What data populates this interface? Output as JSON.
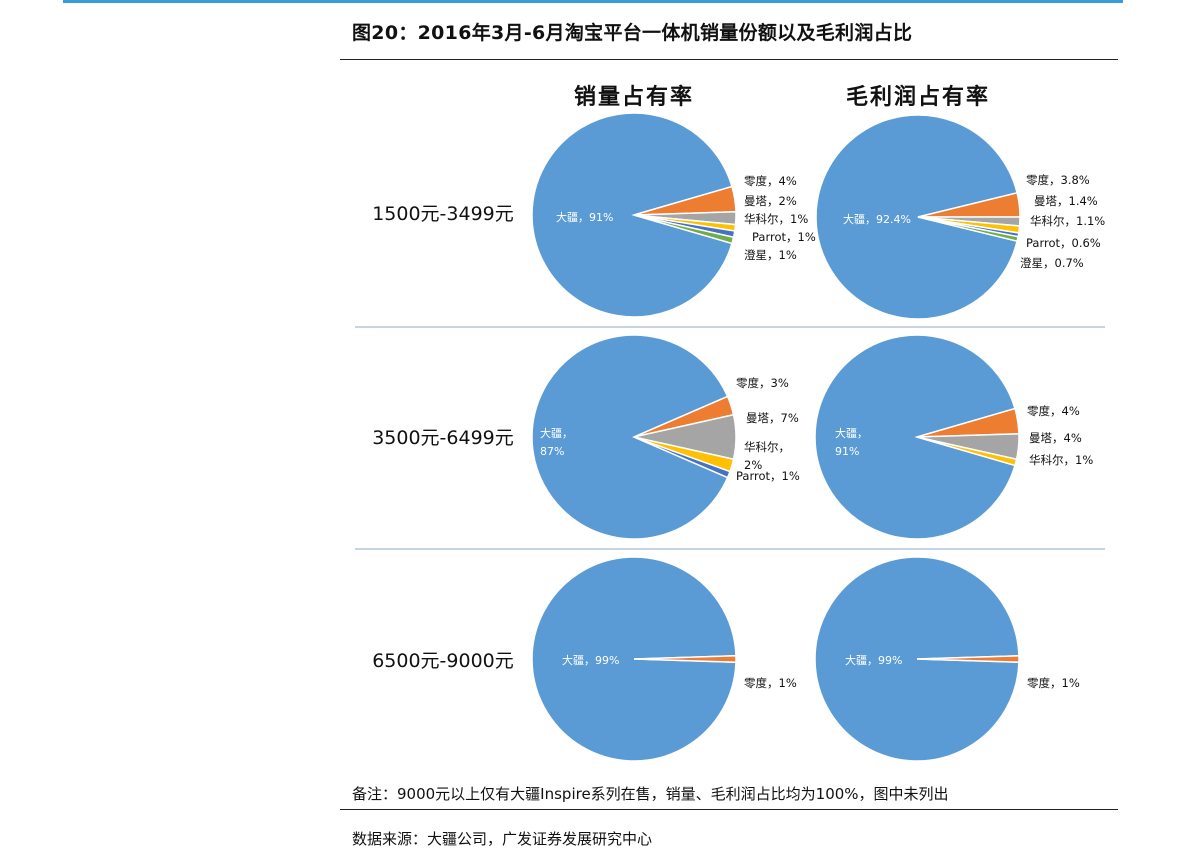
{
  "figure": {
    "title": "图20：2016年3月-6月淘宝平台一体机销量份额以及毛利润占比",
    "note": "备注：9000元以上仅有大疆Inspire系列在售，销量、毛利润占比均为100%，图中未列出",
    "source": "数据来源：大疆公司，广发证券发展研究中心"
  },
  "colors": {
    "大疆": "#5b9bd5",
    "零度": "#ed7d31",
    "曼塔": "#a5a5a5",
    "华科尔": "#ffc000",
    "Parrot": "#4472c4",
    "澄星": "#70ad47"
  },
  "chart_data": [
    {
      "type": "pie",
      "title": "销量占有率",
      "row_label": "1500元-3499元",
      "slices": [
        {
          "name": "大疆",
          "value": 91,
          "label": "大疆，91%"
        },
        {
          "name": "零度",
          "value": 4,
          "label": "零度，4%"
        },
        {
          "name": "曼塔",
          "value": 2,
          "label": "曼塔，2%"
        },
        {
          "name": "华科尔",
          "value": 1,
          "label": "华科尔，1%"
        },
        {
          "name": "Parrot",
          "value": 1,
          "label": "Parrot，1%"
        },
        {
          "name": "澄星",
          "value": 1,
          "label": "澄星，1%"
        }
      ]
    },
    {
      "type": "pie",
      "title": "毛利润占有率",
      "row_label": "1500元-3499元",
      "slices": [
        {
          "name": "大疆",
          "value": 92.4,
          "label": "大疆，92.4%"
        },
        {
          "name": "零度",
          "value": 3.8,
          "label": "零度，3.8%"
        },
        {
          "name": "曼塔",
          "value": 1.4,
          "label": "曼塔，1.4%"
        },
        {
          "name": "华科尔",
          "value": 1.1,
          "label": "华科尔，1.1%"
        },
        {
          "name": "Parrot",
          "value": 0.6,
          "label": "Parrot，0.6%"
        },
        {
          "name": "澄星",
          "value": 0.7,
          "label": "澄星，0.7%"
        }
      ]
    },
    {
      "type": "pie",
      "title": "",
      "row_label": "3500元-6499元",
      "slices": [
        {
          "name": "大疆",
          "value": 87,
          "label": "大疆，87%"
        },
        {
          "name": "零度",
          "value": 3,
          "label": "零度，3%"
        },
        {
          "name": "曼塔",
          "value": 7,
          "label": "曼塔，7%"
        },
        {
          "name": "华科尔",
          "value": 2,
          "label": "华科尔，2%"
        },
        {
          "name": "Parrot",
          "value": 1,
          "label": "Parrot，1%"
        }
      ]
    },
    {
      "type": "pie",
      "title": "",
      "row_label": "3500元-6499元",
      "slices": [
        {
          "name": "大疆",
          "value": 91,
          "label": "大疆，91%"
        },
        {
          "name": "零度",
          "value": 4,
          "label": "零度，4%"
        },
        {
          "name": "曼塔",
          "value": 4,
          "label": "曼塔，4%"
        },
        {
          "name": "华科尔",
          "value": 1,
          "label": "华科尔，1%"
        }
      ]
    },
    {
      "type": "pie",
      "title": "",
      "row_label": "6500元-9000元",
      "slices": [
        {
          "name": "大疆",
          "value": 99,
          "label": "大疆，99%"
        },
        {
          "name": "零度",
          "value": 1,
          "label": "零度，1%"
        }
      ]
    },
    {
      "type": "pie",
      "title": "",
      "row_label": "6500元-9000元",
      "slices": [
        {
          "name": "大疆",
          "value": 99,
          "label": "大疆，99%"
        },
        {
          "name": "零度",
          "value": 1,
          "label": "零度，1%"
        }
      ]
    }
  ]
}
